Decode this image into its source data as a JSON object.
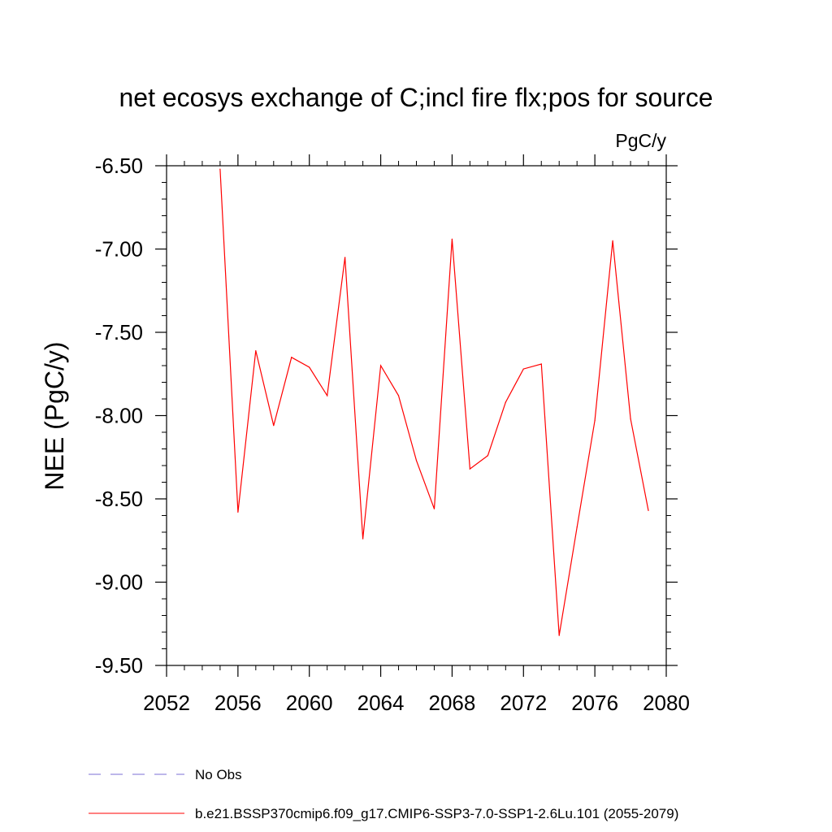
{
  "chart_data": {
    "type": "line",
    "title": "net ecosys exchange of C;incl fire flx;pos for source",
    "units_label": "PgC/y",
    "ylabel": "NEE  (PgC/y)",
    "xlabel": "",
    "xlim": [
      2052,
      2080
    ],
    "ylim": [
      -9.5,
      -6.5
    ],
    "x_ticks": [
      2052,
      2056,
      2060,
      2064,
      2068,
      2072,
      2076,
      2080
    ],
    "y_ticks": [
      "-6.50",
      "-7.00",
      "-7.50",
      "-8.00",
      "-8.50",
      "-9.00",
      "-9.50"
    ],
    "grid": false,
    "series": [
      {
        "name": "b.e21.BSSP370cmip6.f09_g17.CMIP6-SSP3-7.0-SSP1-2.6Lu.101 (2055-2079)",
        "color": "#ff0000",
        "x": [
          2055,
          2056,
          2057,
          2058,
          2059,
          2060,
          2061,
          2062,
          2063,
          2064,
          2065,
          2066,
          2067,
          2068,
          2069,
          2070,
          2071,
          2072,
          2073,
          2074,
          2075,
          2076,
          2077,
          2078,
          2079
        ],
        "y": [
          -6.52,
          -8.58,
          -7.61,
          -8.06,
          -7.65,
          -7.71,
          -7.88,
          -7.05,
          -8.74,
          -7.7,
          -7.88,
          -8.27,
          -8.56,
          -6.94,
          -8.32,
          -8.24,
          -7.92,
          -7.72,
          -7.69,
          -9.32,
          -8.67,
          -8.03,
          -6.95,
          -8.02,
          -8.57
        ]
      }
    ],
    "legend": [
      {
        "label": "No Obs",
        "style": "dashed",
        "color": "#7b6fd6"
      },
      {
        "label": "b.e21.BSSP370cmip6.f09_g17.CMIP6-SSP3-7.0-SSP1-2.6Lu.101 (2055-2079)",
        "style": "solid",
        "color": "#ff0000"
      }
    ]
  }
}
